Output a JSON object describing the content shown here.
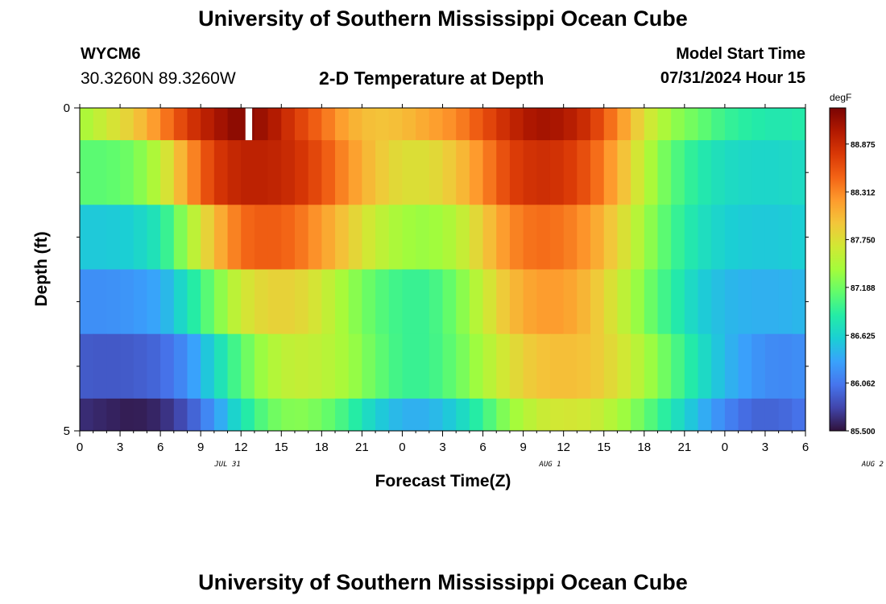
{
  "header": {
    "title": "University of Southern Mississippi Ocean Cube",
    "station_id": "WYCM6",
    "coordinates": "30.3260N  89.3260W",
    "subtitle": "2-D Temperature at Depth",
    "model_start_label": "Model Start Time",
    "model_start_value": "07/31/2024 Hour 15"
  },
  "footer": {
    "title": "University of Southern Mississippi Ocean Cube"
  },
  "chart_data": {
    "type": "heatmap",
    "title": "2-D Temperature at Depth",
    "xlabel": "Forecast Time(Z)",
    "ylabel": "Depth (ft)",
    "x_tick_labels": [
      "0",
      "3",
      "6",
      "9",
      "12",
      "15",
      "18",
      "21",
      "0",
      "3",
      "6",
      "9",
      "12",
      "15",
      "18",
      "21",
      "0",
      "3",
      "6"
    ],
    "x_date_labels": [
      {
        "label": "JUL 31",
        "at_hour": 11
      },
      {
        "label": "AUG 1",
        "at_hour": 35
      },
      {
        "label": "AUG 2",
        "at_hour": 59
      }
    ],
    "x_range_hours": [
      0,
      54
    ],
    "y_tick_labels": [
      {
        "value": 0,
        "label": "0"
      },
      {
        "value": 5,
        "label": "5"
      }
    ],
    "ylim": [
      0,
      5
    ],
    "colorbar": {
      "unit": "degF",
      "min": 85.5,
      "max": 89.3,
      "tick_labels": [
        "85.500",
        "86.062",
        "86.625",
        "87.188",
        "87.750",
        "88.312",
        "88.875"
      ],
      "colors": [
        "#30123b",
        "#4145ab",
        "#4675ed",
        "#39a2fc",
        "#1bcfd4",
        "#24eca6",
        "#61fc6c",
        "#a4fc3b",
        "#d1e834",
        "#f3c63a",
        "#fe9b2d",
        "#f36315",
        "#d93806",
        "#b11901",
        "#7a0403"
      ]
    },
    "rows": [
      {
        "depth_top": 0.0,
        "depth_bottom": 0.5,
        "points": [
          [
            0,
            87.4
          ],
          [
            2,
            87.65
          ],
          [
            4,
            87.9
          ],
          [
            6,
            88.3
          ],
          [
            8,
            88.75
          ],
          [
            10,
            89.05
          ],
          [
            12,
            89.25
          ],
          [
            14,
            89.1
          ],
          [
            16,
            88.75
          ],
          [
            18,
            88.45
          ],
          [
            20,
            88.1
          ],
          [
            22,
            87.95
          ],
          [
            24,
            88.0
          ],
          [
            26,
            88.15
          ],
          [
            28,
            88.3
          ],
          [
            30,
            88.6
          ],
          [
            32,
            88.9
          ],
          [
            34,
            89.1
          ],
          [
            36,
            89.05
          ],
          [
            38,
            88.8
          ],
          [
            40,
            88.3
          ],
          [
            42,
            87.75
          ],
          [
            44,
            87.35
          ],
          [
            46,
            87.15
          ],
          [
            48,
            86.95
          ],
          [
            50,
            86.85
          ],
          [
            52,
            86.8
          ],
          [
            54,
            86.85
          ]
        ],
        "missing": [
          12.33,
          12.83
        ]
      },
      {
        "depth_top": 0.5,
        "depth_bottom": 1.5,
        "points": [
          [
            0,
            87.1
          ],
          [
            2,
            87.1
          ],
          [
            4,
            87.2
          ],
          [
            6,
            87.55
          ],
          [
            8,
            88.2
          ],
          [
            10,
            88.75
          ],
          [
            12,
            88.95
          ],
          [
            14,
            88.95
          ],
          [
            16,
            88.85
          ],
          [
            18,
            88.6
          ],
          [
            20,
            88.25
          ],
          [
            22,
            87.95
          ],
          [
            24,
            87.75
          ],
          [
            26,
            87.75
          ],
          [
            28,
            87.95
          ],
          [
            30,
            88.3
          ],
          [
            32,
            88.7
          ],
          [
            34,
            88.85
          ],
          [
            36,
            88.8
          ],
          [
            38,
            88.55
          ],
          [
            40,
            88.1
          ],
          [
            42,
            87.55
          ],
          [
            44,
            87.1
          ],
          [
            46,
            86.85
          ],
          [
            48,
            86.7
          ],
          [
            50,
            86.65
          ],
          [
            52,
            86.65
          ],
          [
            54,
            86.7
          ]
        ]
      },
      {
        "depth_top": 1.5,
        "depth_bottom": 2.5,
        "points": [
          [
            0,
            86.55
          ],
          [
            2,
            86.55
          ],
          [
            4,
            86.6
          ],
          [
            6,
            86.8
          ],
          [
            8,
            87.4
          ],
          [
            10,
            88.0
          ],
          [
            12,
            88.45
          ],
          [
            14,
            88.55
          ],
          [
            16,
            88.45
          ],
          [
            18,
            88.2
          ],
          [
            20,
            87.9
          ],
          [
            22,
            87.6
          ],
          [
            24,
            87.4
          ],
          [
            26,
            87.35
          ],
          [
            28,
            87.5
          ],
          [
            30,
            87.9
          ],
          [
            32,
            88.3
          ],
          [
            34,
            88.45
          ],
          [
            36,
            88.4
          ],
          [
            38,
            88.2
          ],
          [
            40,
            87.85
          ],
          [
            42,
            87.4
          ],
          [
            44,
            87.0
          ],
          [
            46,
            86.75
          ],
          [
            48,
            86.6
          ],
          [
            50,
            86.55
          ],
          [
            52,
            86.55
          ],
          [
            54,
            86.6
          ]
        ]
      },
      {
        "depth_top": 2.5,
        "depth_bottom": 3.5,
        "points": [
          [
            0,
            86.2
          ],
          [
            2,
            86.2
          ],
          [
            4,
            86.25
          ],
          [
            6,
            86.35
          ],
          [
            8,
            86.75
          ],
          [
            10,
            87.2
          ],
          [
            12,
            87.65
          ],
          [
            14,
            87.85
          ],
          [
            16,
            87.85
          ],
          [
            18,
            87.65
          ],
          [
            20,
            87.35
          ],
          [
            22,
            87.1
          ],
          [
            24,
            86.95
          ],
          [
            26,
            86.95
          ],
          [
            28,
            87.2
          ],
          [
            30,
            87.6
          ],
          [
            32,
            88.0
          ],
          [
            34,
            88.2
          ],
          [
            36,
            88.2
          ],
          [
            38,
            88.0
          ],
          [
            40,
            87.65
          ],
          [
            42,
            87.25
          ],
          [
            44,
            86.9
          ],
          [
            46,
            86.6
          ],
          [
            48,
            86.45
          ],
          [
            50,
            86.4
          ],
          [
            52,
            86.4
          ],
          [
            54,
            86.45
          ]
        ]
      },
      {
        "depth_top": 3.5,
        "depth_bottom": 4.5,
        "points": [
          [
            0,
            85.9
          ],
          [
            2,
            85.88
          ],
          [
            4,
            85.9
          ],
          [
            6,
            85.97
          ],
          [
            8,
            86.2
          ],
          [
            10,
            86.65
          ],
          [
            12,
            87.1
          ],
          [
            14,
            87.45
          ],
          [
            16,
            87.6
          ],
          [
            18,
            87.55
          ],
          [
            20,
            87.4
          ],
          [
            22,
            87.15
          ],
          [
            24,
            86.95
          ],
          [
            26,
            86.95
          ],
          [
            28,
            87.15
          ],
          [
            30,
            87.45
          ],
          [
            32,
            87.75
          ],
          [
            34,
            87.95
          ],
          [
            36,
            88.0
          ],
          [
            38,
            87.95
          ],
          [
            40,
            87.75
          ],
          [
            42,
            87.45
          ],
          [
            44,
            87.1
          ],
          [
            46,
            86.75
          ],
          [
            48,
            86.45
          ],
          [
            50,
            86.25
          ],
          [
            52,
            86.15
          ],
          [
            54,
            86.2
          ]
        ]
      },
      {
        "depth_top": 4.5,
        "depth_bottom": 5.0,
        "points": [
          [
            0,
            85.65
          ],
          [
            2,
            85.6
          ],
          [
            4,
            85.55
          ],
          [
            6,
            85.62
          ],
          [
            8,
            85.85
          ],
          [
            10,
            86.25
          ],
          [
            12,
            86.75
          ],
          [
            14,
            87.15
          ],
          [
            16,
            87.3
          ],
          [
            18,
            87.2
          ],
          [
            20,
            86.95
          ],
          [
            22,
            86.6
          ],
          [
            24,
            86.4
          ],
          [
            26,
            86.4
          ],
          [
            28,
            86.6
          ],
          [
            30,
            86.95
          ],
          [
            32,
            87.35
          ],
          [
            34,
            87.6
          ],
          [
            36,
            87.7
          ],
          [
            38,
            87.65
          ],
          [
            40,
            87.45
          ],
          [
            42,
            87.15
          ],
          [
            44,
            86.8
          ],
          [
            46,
            86.45
          ],
          [
            48,
            86.15
          ],
          [
            50,
            85.95
          ],
          [
            52,
            85.95
          ],
          [
            54,
            86.05
          ]
        ]
      }
    ]
  }
}
